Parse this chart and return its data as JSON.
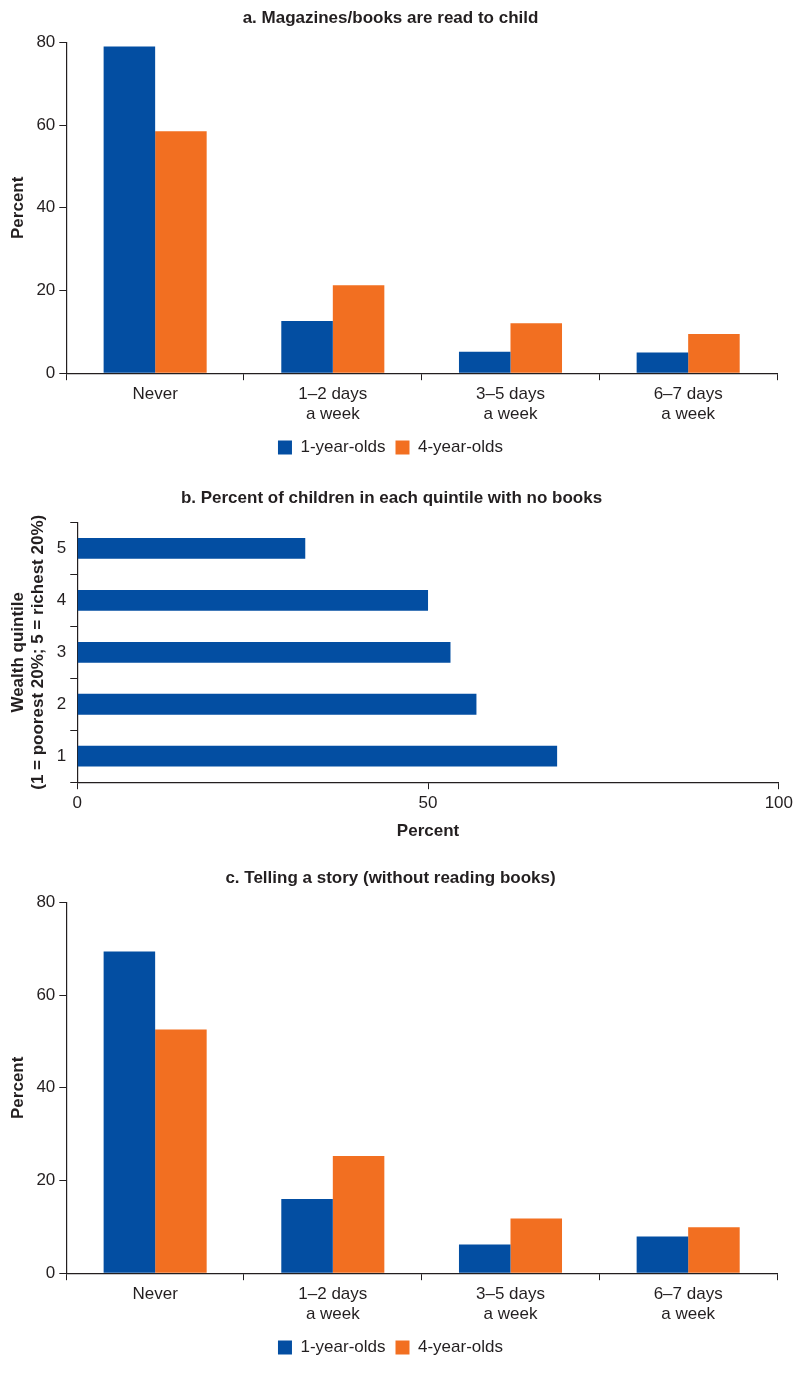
{
  "chart_data": [
    {
      "type": "bar",
      "title": "a. Magazines/books are read to child",
      "ylabel": "Percent",
      "categories": [
        "Never",
        "1–2 days\na week",
        "3–5 days\na week",
        "6–7 days\na week"
      ],
      "series": [
        {
          "name": "1-year-olds",
          "color": "#034ea2",
          "values": [
            79,
            12.6,
            5.2,
            5.0
          ]
        },
        {
          "name": "4-year-olds",
          "color": "#f26f21",
          "values": [
            58.5,
            21.3,
            12.1,
            9.5
          ]
        }
      ],
      "ylim": [
        0,
        80
      ],
      "yticks": [
        0,
        20,
        40,
        60,
        80
      ],
      "grid": false,
      "legend": "bottom"
    },
    {
      "type": "bar",
      "orientation": "horizontal",
      "title": "b. Percent of children in each quintile with no books",
      "xlabel": "Percent",
      "ylabel": "Wealth quintile\n(1 = poorest 20%; 5 = richest 20%)",
      "categories": [
        "5",
        "4",
        "3",
        "2",
        "1"
      ],
      "series": [
        {
          "color": "#034ea2",
          "values": [
            32.5,
            50.0,
            53.2,
            56.9,
            68.4
          ]
        }
      ],
      "xlim": [
        0,
        100
      ],
      "xticks": [
        0,
        50,
        100
      ],
      "grid": false,
      "legend": false
    },
    {
      "type": "bar",
      "title": "c. Telling a story (without reading books)",
      "ylabel": "Percent",
      "categories": [
        "Never",
        "1–2 days\na week",
        "3–5 days\na week",
        "6–7 days\na week"
      ],
      "series": [
        {
          "name": "1-year-olds",
          "color": "#034ea2",
          "values": [
            69.4,
            16.0,
            6.2,
            7.9
          ]
        },
        {
          "name": "4-year-olds",
          "color": "#f26f21",
          "values": [
            52.6,
            25.3,
            11.8,
            9.9
          ]
        }
      ],
      "ylim": [
        0,
        80
      ],
      "yticks": [
        0,
        20,
        40,
        60,
        80
      ],
      "grid": false,
      "legend": "bottom"
    }
  ]
}
